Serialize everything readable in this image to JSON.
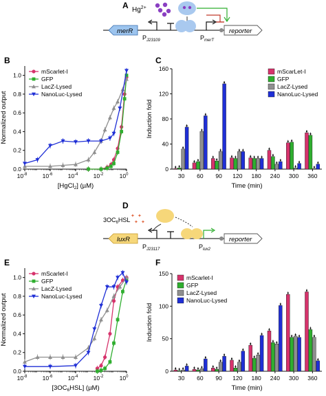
{
  "colors": {
    "mscarlet": "#d6336c",
    "gfp": "#2fae2f",
    "lacz": "#8f8f8f",
    "nanoluc": "#1f2fd6",
    "protein": "#a9c9ef",
    "protein_luxr": "#f6d77a",
    "inducer_hg": "#8a3fc2",
    "inducer_hsl": "#e0623a",
    "gene": "#9cc4ee"
  },
  "panel_labels": [
    "A",
    "B",
    "C",
    "D",
    "E",
    "F"
  ],
  "diagram_a": {
    "inducer": "Hg",
    "inducer_charge": "2+",
    "gene": "merR",
    "promoter1": "P",
    "promoter1_sub": "J23109",
    "promoter2": "P",
    "promoter2_sub": "merT",
    "reporter": "reporter"
  },
  "diagram_d": {
    "inducer_prefix": "3OC",
    "inducer_sub": "6",
    "inducer_suffix": "HSL",
    "gene": "luxR",
    "promoter1": "P",
    "promoter1_sub": "J23117",
    "promoter2": "P",
    "promoter2_sub": "lux2",
    "reporter": "reporter"
  },
  "chart_data": [
    {
      "panel": "B",
      "type": "scatter",
      "xlabel_prefix": "[HgCl",
      "xlabel_sub": "2",
      "xlabel_suffix": "] (µM)",
      "ylabel": "Normalized output",
      "xscale": "log",
      "xlim": [
        1e-08,
        1
      ],
      "ylim": [
        0,
        1.1
      ],
      "x_ticks": [
        {
          "exp": "-8"
        },
        {
          "exp": "-6"
        },
        {
          "exp": "-4"
        },
        {
          "exp": "-2"
        },
        {
          "exp": "0"
        }
      ],
      "x_tick_base": "10",
      "y_ticks": [
        "0.0",
        "0.2",
        "0.4",
        "0.6",
        "0.8",
        "1.0"
      ],
      "legend": [
        "mScarlet-I",
        "GFP",
        "LacZ-Lysed",
        "NanoLuc-Lysed"
      ],
      "legend_position": "top-left",
      "series": [
        {
          "name": "mScarlet-I",
          "x": [
            0.001,
            0.01,
            0.03,
            0.06,
            0.1,
            0.2,
            0.4,
            0.7,
            1.0
          ],
          "y": [
            0.0,
            0.0,
            0.02,
            0.05,
            0.1,
            0.22,
            0.45,
            0.8,
            0.98
          ]
        },
        {
          "name": "GFP",
          "x": [
            0.001,
            0.01,
            0.03,
            0.06,
            0.1,
            0.2,
            0.4,
            0.7,
            1.0
          ],
          "y": [
            0.0,
            0.0,
            0.01,
            0.03,
            0.06,
            0.18,
            0.4,
            0.75,
            1.0
          ]
        },
        {
          "name": "LacZ-Lysed",
          "x": [
            1e-08,
            1e-06,
            1e-05,
            0.0001,
            0.001,
            0.003,
            0.01,
            0.02,
            0.05,
            0.1,
            0.2,
            0.5,
            1.0
          ],
          "y": [
            0.03,
            0.03,
            0.04,
            0.05,
            0.1,
            0.18,
            0.3,
            0.42,
            0.55,
            0.65,
            0.72,
            0.85,
            0.96
          ]
        },
        {
          "name": "NanoLuc-Lysed",
          "x": [
            1e-08,
            1e-07,
            1e-06,
            1e-05,
            0.0001,
            0.001,
            0.01,
            0.05,
            0.1,
            0.3,
            1.0
          ],
          "y": [
            0.06,
            0.1,
            0.25,
            0.3,
            0.29,
            0.3,
            0.3,
            0.33,
            0.38,
            0.65,
            1.05
          ]
        }
      ]
    },
    {
      "panel": "C",
      "type": "bar",
      "xlabel": "Time (min)",
      "ylabel": "Induction fold",
      "ylim": [
        0,
        160
      ],
      "y_ticks": [
        "0",
        "40",
        "80",
        "120",
        "160"
      ],
      "categories": [
        "30",
        "60",
        "90",
        "120",
        "180",
        "240",
        "300",
        "360"
      ],
      "legend": [
        "mScarLet-I",
        "GFP",
        "LacZ-Lysed",
        "NanoLuc-Lysed"
      ],
      "legend_position": "top-right",
      "series": [
        {
          "name": "mScarLet-I",
          "values": [
            1,
            10,
            17,
            18,
            18,
            30,
            42,
            58
          ]
        },
        {
          "name": "GFP",
          "values": [
            2,
            12,
            13,
            17,
            17,
            20,
            43,
            54
          ]
        },
        {
          "name": "LacZ-Lysed",
          "values": [
            32,
            60,
            28,
            28,
            17,
            8,
            2,
            1
          ]
        },
        {
          "name": "NanoLuc-Lysed",
          "values": [
            67,
            85,
            136,
            28,
            17,
            12,
            9,
            8
          ]
        }
      ]
    },
    {
      "panel": "E",
      "type": "scatter",
      "xlabel_prefix": "[3OC",
      "xlabel_sub": "6",
      "xlabel_suffix": "HSL] (µM)",
      "ylabel": "Normalized output",
      "xscale": "log",
      "xlim": [
        1e-08,
        1
      ],
      "ylim": [
        0,
        1.1
      ],
      "x_ticks": [
        {
          "exp": "-8"
        },
        {
          "exp": "-6"
        },
        {
          "exp": "-4"
        },
        {
          "exp": "-2"
        },
        {
          "exp": "0"
        }
      ],
      "x_tick_base": "10",
      "y_ticks": [
        "0.0",
        "0.2",
        "0.4",
        "0.6",
        "0.8",
        "1.0"
      ],
      "legend": [
        "mScarlet-I",
        "GFP",
        "LacZ-Lysed",
        "NanoLuc-Lysed"
      ],
      "legend_position": "top-left",
      "series": [
        {
          "name": "mScarlet-I",
          "x": [
            0.005,
            0.01,
            0.02,
            0.05,
            0.1,
            0.2,
            0.5,
            1.0
          ],
          "y": [
            0.03,
            0.06,
            0.15,
            0.4,
            0.75,
            0.9,
            0.97,
            1.0
          ]
        },
        {
          "name": "GFP",
          "x": [
            0.005,
            0.01,
            0.02,
            0.05,
            0.1,
            0.2,
            0.5,
            1.0
          ],
          "y": [
            0.0,
            0.01,
            0.03,
            0.1,
            0.3,
            0.55,
            0.85,
            0.98
          ]
        },
        {
          "name": "LacZ-Lysed",
          "x": [
            1e-08,
            1e-07,
            1e-06,
            1e-05,
            0.0001,
            0.001,
            0.003,
            0.01,
            0.03,
            0.1,
            0.3,
            1.0
          ],
          "y": [
            0.1,
            0.15,
            0.15,
            0.15,
            0.15,
            0.25,
            0.35,
            0.55,
            0.65,
            0.8,
            0.9,
            1.0
          ]
        },
        {
          "name": "NanoLuc-Lysed",
          "x": [
            1e-08,
            1e-06,
            0.0001,
            0.001,
            0.003,
            0.01,
            0.03,
            0.1,
            0.2,
            0.5,
            1.0
          ],
          "y": [
            0.05,
            0.05,
            0.06,
            0.2,
            0.45,
            0.7,
            0.9,
            0.9,
            1.0,
            1.05,
            0.95
          ]
        }
      ]
    },
    {
      "panel": "F",
      "type": "bar",
      "xlabel": "Time (min)",
      "ylabel": "Induction fold",
      "ylim": [
        0,
        150
      ],
      "y_ticks": [
        "0",
        "50",
        "100",
        "150"
      ],
      "categories": [
        "30",
        "60",
        "90",
        "120",
        "180",
        "240",
        "300",
        "360"
      ],
      "legend": [
        "mScarlet-I",
        "GFP",
        "LacZ-Lysed",
        "NanoLuc-Lysed"
      ],
      "legend_position": "top-left",
      "series": [
        {
          "name": "mScarlet-I",
          "values": [
            2,
            3,
            5,
            17,
            40,
            62,
            118,
            122
          ]
        },
        {
          "name": "GFP",
          "values": [
            1,
            2,
            3,
            5,
            20,
            44,
            52,
            64
          ]
        },
        {
          "name": "LacZ-Lysed",
          "values": [
            2,
            4,
            14,
            14,
            25,
            42,
            54,
            52
          ]
        },
        {
          "name": "NanoLuc-Lysed",
          "values": [
            8,
            19,
            23,
            31,
            55,
            101,
            52,
            16
          ]
        }
      ]
    }
  ]
}
